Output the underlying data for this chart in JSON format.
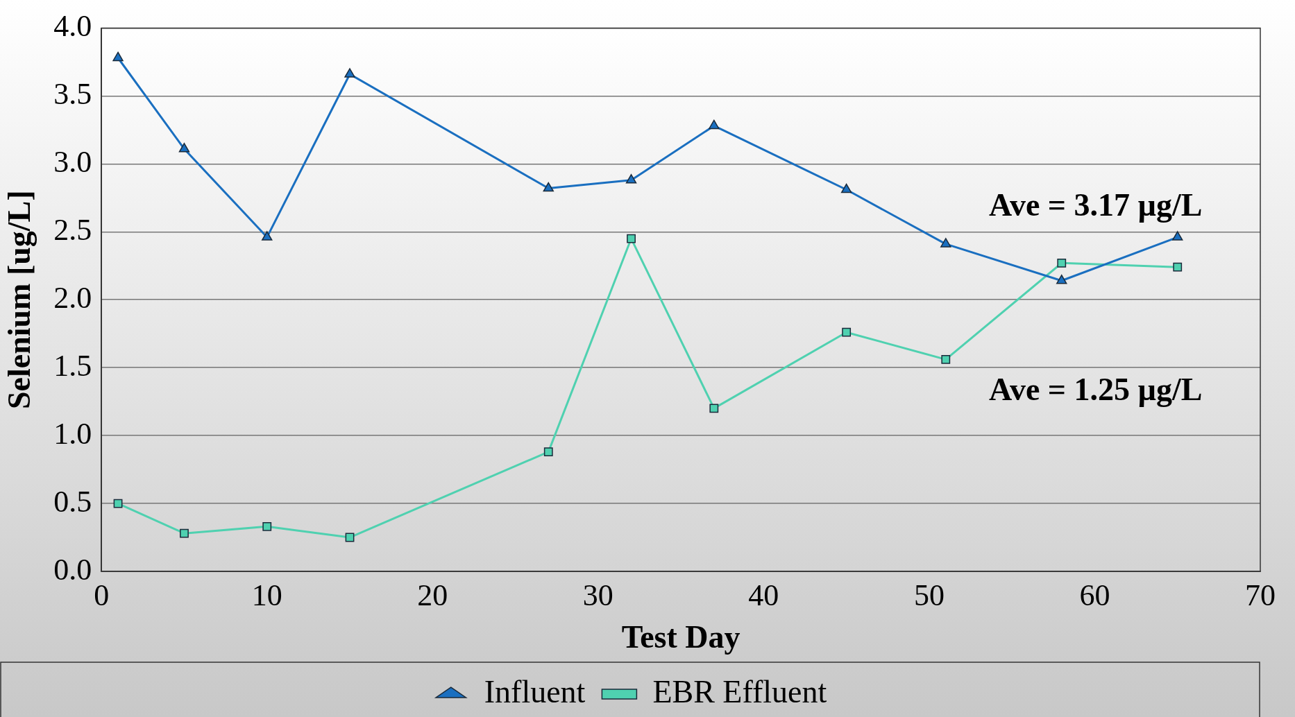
{
  "chart_data": {
    "type": "line",
    "xlabel": "Test Day",
    "ylabel": "Selenium [ug/L]",
    "xlim": [
      0,
      70
    ],
    "xticks": [
      0,
      10,
      20,
      30,
      40,
      50,
      60,
      70
    ],
    "ylim": [
      0,
      4
    ],
    "yticks": [
      {
        "value": 0,
        "label": "0.0"
      },
      {
        "value": 0.5,
        "label": "0.5"
      },
      {
        "value": 1,
        "label": "1.0"
      },
      {
        "value": 1.5,
        "label": "1.5"
      },
      {
        "value": 2,
        "label": "2.0"
      },
      {
        "value": 2.5,
        "label": "2.5"
      },
      {
        "value": 3,
        "label": "3.0"
      },
      {
        "value": 3.5,
        "label": "3.5"
      },
      {
        "value": 4,
        "label": "4.0"
      }
    ],
    "grid": "y",
    "legend": "bottom",
    "line_style": "solid",
    "x": [
      1,
      5,
      10,
      15,
      27,
      32,
      37,
      45,
      51,
      58,
      65
    ],
    "series": [
      {
        "name": "Influent",
        "color": "#1a6fc0",
        "marker": "triangle",
        "values": [
          3.78,
          3.11,
          2.46,
          3.66,
          2.82,
          2.88,
          3.28,
          2.81,
          2.41,
          2.14,
          2.46
        ]
      },
      {
        "name": "EBR Effluent",
        "color": "#4fd1b0",
        "marker": "square",
        "values": [
          0.5,
          0.28,
          0.33,
          0.25,
          0.88,
          2.45,
          1.2,
          1.76,
          1.56,
          2.27,
          2.24
        ]
      }
    ],
    "annotations": [
      "Ave = 3.17 µg/L",
      "Ave = 1.25 µg/L"
    ]
  }
}
